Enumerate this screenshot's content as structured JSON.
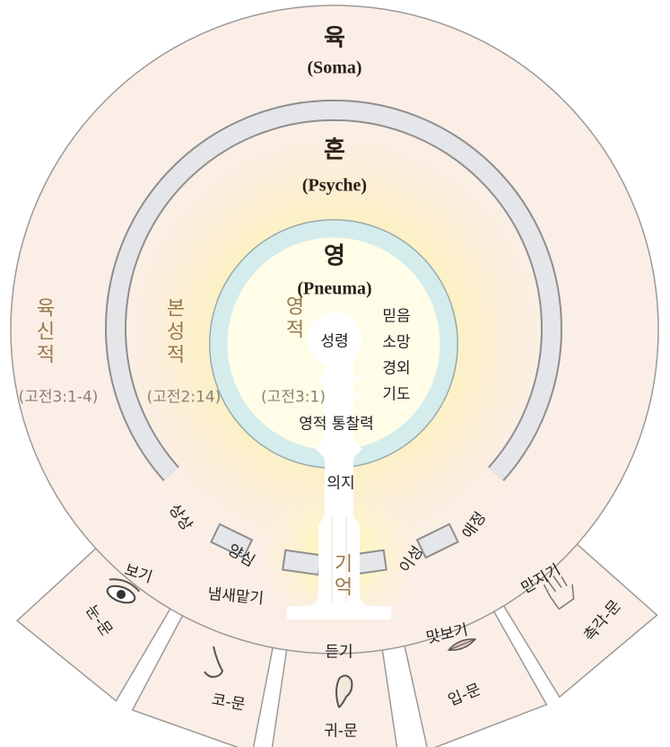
{
  "layers": [
    {
      "title": "육",
      "subtitle": "(Soma)",
      "side_label": "육신적",
      "reference": "(고전3:1-4)"
    },
    {
      "title": "혼",
      "subtitle": "(Psyche)",
      "side_label": "본성적",
      "reference": "(고전2:14)"
    },
    {
      "title": "영",
      "subtitle": "(Pneuma)",
      "side_label": "영적",
      "reference": "(고전3:1)"
    }
  ],
  "spirit": {
    "center": "성령",
    "virtues": [
      "믿음",
      "소망",
      "경외",
      "기도"
    ],
    "insight": "영적 통찰력"
  },
  "soul": {
    "will": "의지",
    "memory": "기억",
    "faculties": [
      "상상",
      "양심",
      "이성",
      "애정"
    ]
  },
  "senses": [
    {
      "action": "보기",
      "gate": "눈-문"
    },
    {
      "action": "냄새맡기",
      "gate": "코-문"
    },
    {
      "action": "듣기",
      "gate": "귀-문"
    },
    {
      "action": "맛보기",
      "gate": "입-문"
    },
    {
      "action": "만지기",
      "gate": "촉각-문"
    }
  ]
}
